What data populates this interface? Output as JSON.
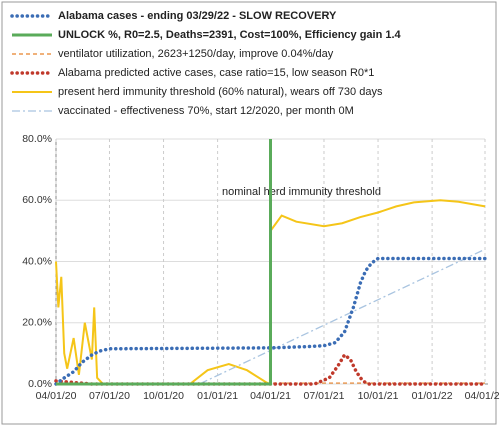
{
  "chart_data": {
    "type": "line",
    "annotation": "nominal herd immunity threshold",
    "annotation_color": "#c07a1a",
    "xlim": [
      "2020-04-01",
      "2022-04-01"
    ],
    "xticks": [
      {
        "value": "2020-04-01",
        "label": "04/01/20"
      },
      {
        "value": "2020-07-01",
        "label": "07/01/20"
      },
      {
        "value": "2020-10-01",
        "label": "10/01/20"
      },
      {
        "value": "2021-01-01",
        "label": "01/01/21"
      },
      {
        "value": "2021-04-01",
        "label": "04/01/21"
      },
      {
        "value": "2021-07-01",
        "label": "07/01/21"
      },
      {
        "value": "2021-10-01",
        "label": "10/01/21"
      },
      {
        "value": "2022-01-01",
        "label": "01/01/22"
      },
      {
        "value": "2022-04-01",
        "label": "04/01/22"
      }
    ],
    "ylim": [
      0,
      80
    ],
    "yticks": [
      {
        "value": 0,
        "label": "0.0%"
      },
      {
        "value": 20,
        "label": "20.0%"
      },
      {
        "value": 40,
        "label": "40.0%"
      },
      {
        "value": 60,
        "label": "60.0%"
      },
      {
        "value": 80,
        "label": "80.0%"
      }
    ],
    "grid": true,
    "series": [
      {
        "name": "Alabama cases - ending 03/29/22 - SLOW RECOVERY",
        "color": "#3b6db5",
        "style": "dotted",
        "width": 3.5,
        "x": [
          "2020-04-01",
          "2020-04-15",
          "2020-05-01",
          "2020-05-15",
          "2020-06-01",
          "2020-06-15",
          "2020-07-01",
          "2021-04-01",
          "2021-05-01",
          "2021-06-01",
          "2021-07-01",
          "2021-07-20",
          "2021-08-05",
          "2021-08-20",
          "2021-09-01",
          "2021-09-10",
          "2021-09-20",
          "2021-10-01",
          "2022-04-01"
        ],
        "values": [
          0,
          2,
          4,
          7,
          9.5,
          10.8,
          11.5,
          11.8,
          12,
          12.2,
          12.5,
          13.5,
          17,
          25,
          33,
          37,
          39.5,
          41,
          41
        ]
      },
      {
        "name": "UNLOCK %, R0=2.5,  Deaths=2391, Cost=100%, Efficiency gain 1.4",
        "color": "#5aab5a",
        "style": "solid",
        "width": 3,
        "x": [
          "2020-04-01",
          "2021-04-01",
          "2021-04-01"
        ],
        "values": [
          0,
          0,
          80
        ]
      },
      {
        "name": "ventilator utilization, 2623+1250/day, improve 0.04%/day",
        "color": "#e8822a",
        "style": "dashed",
        "width": 1.2,
        "x": [
          "2020-04-01",
          "2022-04-01"
        ],
        "values": [
          0.3,
          0.3
        ]
      },
      {
        "name": "Alabama predicted active cases, case ratio=15, low season R0*1",
        "color": "#c0392b",
        "style": "dotted",
        "width": 3.5,
        "x": [
          "2020-04-01",
          "2020-05-01",
          "2020-06-01",
          "2021-06-15",
          "2021-07-10",
          "2021-07-25",
          "2021-08-05",
          "2021-08-15",
          "2021-08-25",
          "2021-09-05",
          "2021-09-15",
          "2022-04-01"
        ],
        "values": [
          1,
          0.5,
          0,
          0,
          2,
          6,
          9.5,
          8,
          4,
          1,
          0,
          0
        ]
      },
      {
        "name": "present herd immunity threshold (60% natural), wears off 730 days",
        "color": "#f5c518",
        "style": "solid",
        "width": 2,
        "x": [
          "2020-04-01",
          "2020-04-05",
          "2020-04-10",
          "2020-04-15",
          "2020-04-20",
          "2020-05-01",
          "2020-05-10",
          "2020-05-20",
          "2020-06-01",
          "2020-06-05",
          "2020-06-10",
          "2020-06-20",
          "2020-11-15",
          "2020-12-15",
          "2021-01-20",
          "2021-02-20",
          "2021-03-25",
          "2021-03-31",
          "2021-04-01",
          "2021-04-20",
          "2021-05-15",
          "2021-07-01",
          "2021-08-01",
          "2021-09-01",
          "2021-10-01",
          "2021-11-01",
          "2021-12-01",
          "2022-01-15",
          "2022-02-15",
          "2022-04-01"
        ],
        "values": [
          40,
          25,
          35,
          10,
          5,
          15,
          3,
          20,
          8,
          25,
          2,
          0,
          0,
          4.5,
          6.5,
          4.5,
          0.5,
          0,
          50,
          55,
          53,
          51.5,
          52.5,
          54.5,
          56,
          58,
          59.3,
          60,
          59.5,
          58
        ]
      },
      {
        "name": "vaccinated - effectiveness 70%, start 12/2020, per month 0M",
        "color": "#a9c4e0",
        "style": "dashdot",
        "width": 1.3,
        "x": [
          "2020-04-01",
          "2020-12-01",
          "2022-04-01"
        ],
        "values": [
          0,
          0,
          44
        ]
      }
    ]
  }
}
